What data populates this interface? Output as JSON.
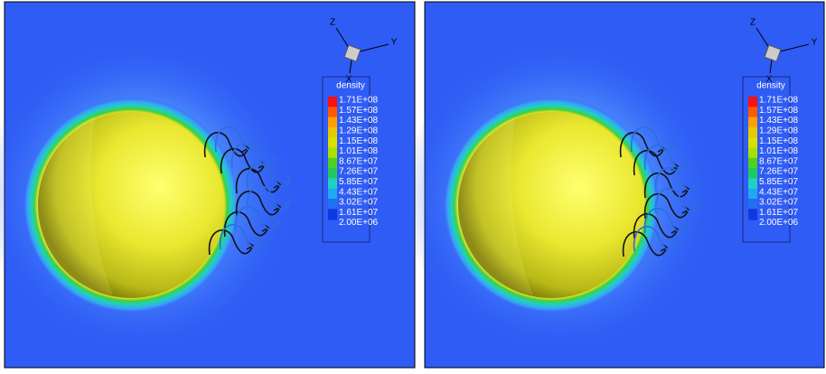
{
  "panels": [
    {
      "axes": {
        "z": "Z",
        "y": "Y",
        "x": "X"
      },
      "legend": {
        "title": "density",
        "labels": [
          "1.71E+08",
          "1.57E+08",
          "1.43E+08",
          "1.29E+08",
          "1.15E+08",
          "1.01E+08",
          "8.67E+07",
          "7.26E+07",
          "5.85E+07",
          "4.43E+07",
          "3.02E+07",
          "1.61E+07",
          "2.00E+06"
        ]
      }
    },
    {
      "axes": {
        "z": "Z",
        "y": "Y",
        "x": "X"
      },
      "legend": {
        "title": "density",
        "labels": [
          "1.71E+08",
          "1.57E+08",
          "1.43E+08",
          "1.29E+08",
          "1.15E+08",
          "1.01E+08",
          "8.67E+07",
          "7.26E+07",
          "5.85E+07",
          "4.43E+07",
          "3.02E+07",
          "1.61E+07",
          "2.00E+06"
        ]
      }
    }
  ]
}
